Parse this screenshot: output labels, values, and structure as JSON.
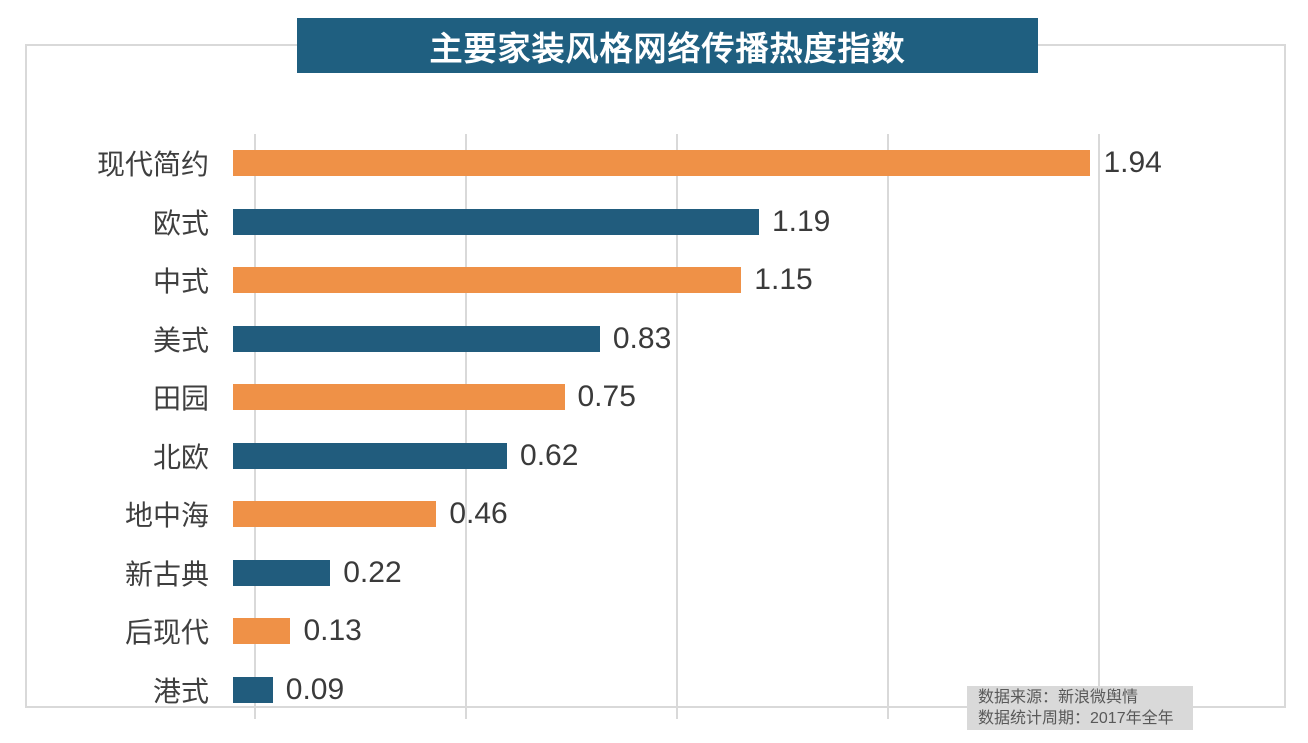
{
  "title": "主要家装风格网络传播热度指数",
  "source": {
    "line1": "数据来源：新浪微舆情",
    "line2": "数据统计周期：2017年全年"
  },
  "colors": {
    "title_bg": "#1f5f80",
    "bar_orange": "#ef9147",
    "bar_teal": "#215c7d",
    "gridline": "#d9d9d9",
    "frame_border": "#d9d9d9",
    "category_label": "#3f3f3f",
    "value_label": "#3a3a3a",
    "source_bg": "#d9d9d9",
    "source_text": "#595959"
  },
  "chart_data": {
    "type": "bar",
    "orientation": "horizontal",
    "title": "主要家装风格网络传播热度指数",
    "categories": [
      "现代简约",
      "欧式",
      "中式",
      "美式",
      "田园",
      "北欧",
      "地中海",
      "新古典",
      "后现代",
      "港式"
    ],
    "values": [
      1.94,
      1.19,
      1.15,
      0.83,
      0.75,
      0.62,
      0.46,
      0.22,
      0.13,
      0.09
    ],
    "xlabel": "",
    "ylabel": "",
    "xlim": [
      0,
      2
    ],
    "gridline_step": 0.5,
    "grid": "vertical",
    "legend": "none",
    "data_labels": "outside-end",
    "bar_colors_alternate": [
      "#ef9147",
      "#215c7d"
    ],
    "annotations": [
      "数据来源：新浪微舆情",
      "数据统计周期：2017年全年"
    ]
  }
}
